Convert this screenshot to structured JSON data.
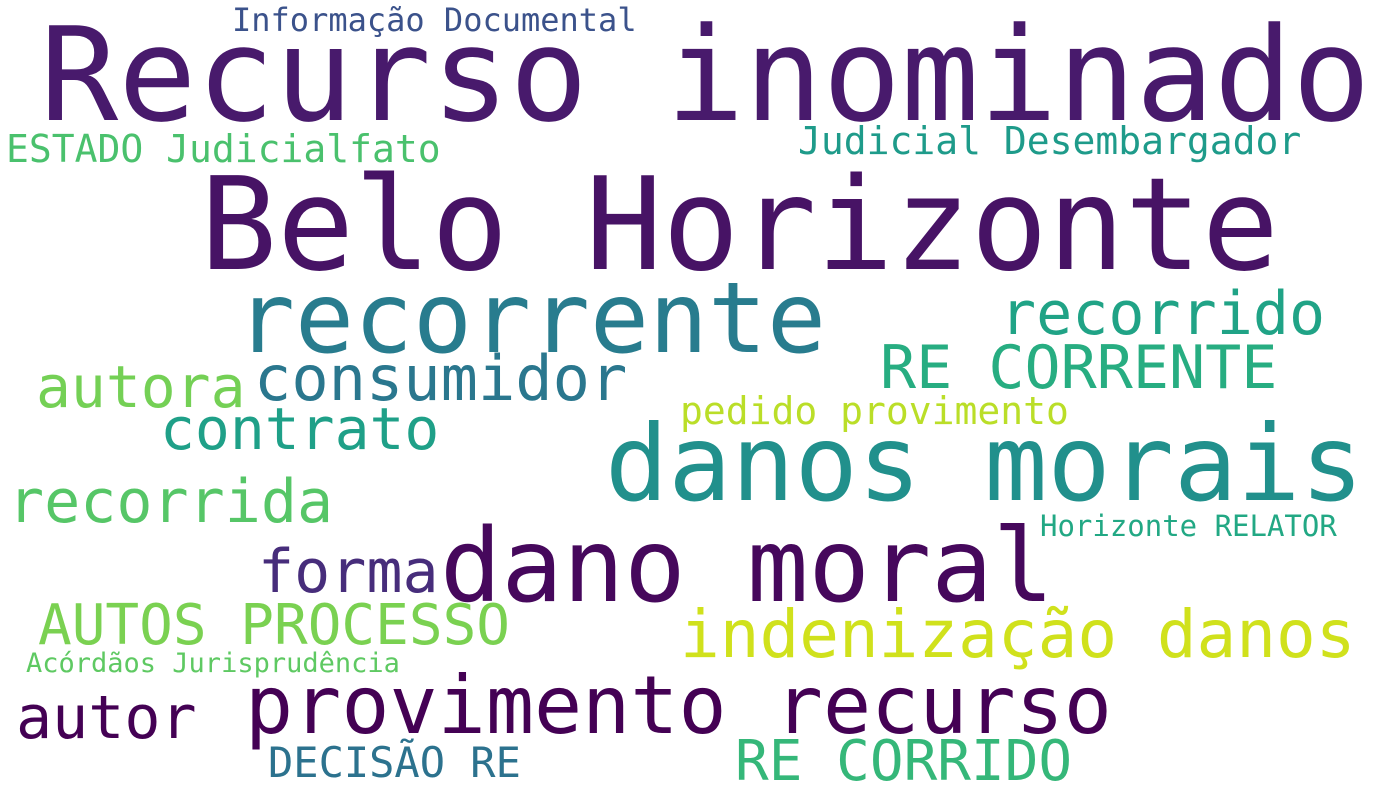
{
  "words": [
    {
      "text": "Recurso inominado",
      "color": "#481a6c"
    },
    {
      "text": "Belo Horizonte",
      "color": "#471365"
    },
    {
      "text": "recorrente",
      "color": "#287c8e"
    },
    {
      "text": "danos morais",
      "color": "#21908c"
    },
    {
      "text": "dano moral",
      "color": "#46085c"
    },
    {
      "text": "provimento recurso",
      "color": "#440154"
    },
    {
      "text": "indenização danos",
      "color": "#d0e11c"
    },
    {
      "text": "consumidor",
      "color": "#2a778e"
    },
    {
      "text": "recorrido",
      "color": "#20a386"
    },
    {
      "text": "RE CORRENTE",
      "color": "#27ad81"
    },
    {
      "text": "autora",
      "color": "#74d055"
    },
    {
      "text": "contrato",
      "color": "#1fa088"
    },
    {
      "text": "recorrida",
      "color": "#56c667"
    },
    {
      "text": "AUTOS PROCESSO",
      "color": "#7ad151"
    },
    {
      "text": "forma",
      "color": "#472d7b"
    },
    {
      "text": "autor",
      "color": "#440154"
    },
    {
      "text": "RE CORRIDO",
      "color": "#35b779"
    },
    {
      "text": "DECISÃO RE",
      "color": "#2c728e"
    },
    {
      "text": "pedido provimento",
      "color": "#bade28"
    },
    {
      "text": "Judicial Desembargador",
      "color": "#1e9b8a"
    },
    {
      "text": "ESTADO Judicialfato",
      "color": "#4ac16d"
    },
    {
      "text": "Informação Documental",
      "color": "#3b528b"
    },
    {
      "text": "Horizonte RELATOR",
      "color": "#22a884"
    },
    {
      "text": "Acórdãos Jurisprudência",
      "color": "#5ec962"
    }
  ]
}
